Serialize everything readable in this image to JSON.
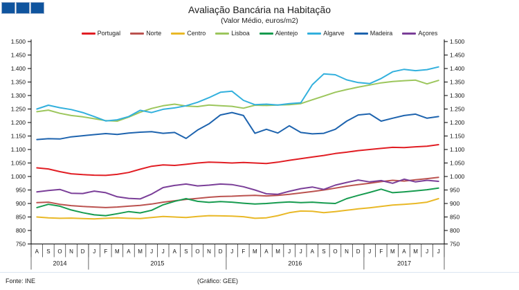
{
  "logo": {
    "square_count": 3,
    "fill": "#0f549e",
    "border": "#93aac9"
  },
  "footer": {
    "source": "Fonte: INE",
    "credit": "(Gráfico: GEE)"
  },
  "chart_data": {
    "type": "line",
    "title": "Avaliação Bancária na Habitação",
    "subtitle": "(Valor Médio, euros/m2)",
    "ylim": [
      750,
      1500
    ],
    "ytick_step": 50,
    "grid": false,
    "legend_position": "top",
    "axis_color": "#000000",
    "x_months": [
      "A",
      "S",
      "O",
      "N",
      "D",
      "J",
      "F",
      "M",
      "A",
      "M",
      "J",
      "J",
      "A",
      "S",
      "O",
      "N",
      "D",
      "J",
      "F",
      "M",
      "A",
      "M",
      "J",
      "J",
      "A",
      "S",
      "O",
      "N",
      "D",
      "J",
      "F",
      "M",
      "A",
      "M",
      "J",
      "J"
    ],
    "year_groups": [
      {
        "label": "2014",
        "count": 5
      },
      {
        "label": "2015",
        "count": 12
      },
      {
        "label": "2016",
        "count": 12
      },
      {
        "label": "2017",
        "count": 7
      }
    ],
    "series": [
      {
        "name": "Portugal",
        "color": "#e11d23",
        "values": [
          1032,
          1028,
          1018,
          1010,
          1007,
          1005,
          1004,
          1008,
          1015,
          1027,
          1038,
          1043,
          1041,
          1045,
          1050,
          1053,
          1052,
          1050,
          1052,
          1050,
          1048,
          1053,
          1060,
          1066,
          1072,
          1078,
          1085,
          1090,
          1096,
          1100,
          1104,
          1108,
          1107,
          1110,
          1112,
          1118
        ]
      },
      {
        "name": "Norte",
        "color": "#bb524f",
        "values": [
          903,
          905,
          897,
          892,
          889,
          887,
          885,
          887,
          890,
          893,
          898,
          905,
          910,
          915,
          919,
          923,
          926,
          927,
          929,
          930,
          928,
          930,
          934,
          939,
          944,
          950,
          957,
          964,
          970,
          975,
          981,
          986,
          983,
          988,
          992,
          997
        ]
      },
      {
        "name": "Centro",
        "color": "#e9b826",
        "values": [
          850,
          847,
          845,
          846,
          844,
          843,
          845,
          847,
          845,
          844,
          848,
          852,
          850,
          848,
          852,
          855,
          854,
          853,
          851,
          845,
          847,
          855,
          866,
          872,
          871,
          866,
          870,
          875,
          880,
          884,
          889,
          894,
          897,
          900,
          905,
          918
        ]
      },
      {
        "name": "Lisboa",
        "color": "#9cc65c",
        "values": [
          1240,
          1246,
          1234,
          1226,
          1221,
          1214,
          1207,
          1205,
          1220,
          1238,
          1252,
          1262,
          1268,
          1261,
          1259,
          1265,
          1262,
          1260,
          1253,
          1264,
          1263,
          1265,
          1266,
          1270,
          1284,
          1298,
          1312,
          1322,
          1331,
          1339,
          1347,
          1352,
          1355,
          1357,
          1343,
          1356
        ]
      },
      {
        "name": "Alentejo",
        "color": "#169b4f",
        "values": [
          885,
          897,
          890,
          876,
          866,
          858,
          855,
          862,
          870,
          865,
          875,
          895,
          908,
          918,
          908,
          904,
          907,
          905,
          901,
          898,
          900,
          903,
          906,
          903,
          905,
          902,
          900,
          918,
          930,
          941,
          953,
          940,
          943,
          947,
          951,
          957
        ]
      },
      {
        "name": "Algarve",
        "color": "#32b0dd",
        "values": [
          1250,
          1264,
          1255,
          1248,
          1237,
          1222,
          1206,
          1210,
          1222,
          1245,
          1237,
          1249,
          1254,
          1262,
          1275,
          1292,
          1312,
          1316,
          1282,
          1266,
          1268,
          1265,
          1270,
          1273,
          1340,
          1380,
          1377,
          1358,
          1348,
          1344,
          1363,
          1388,
          1397,
          1392,
          1396,
          1406
        ]
      },
      {
        "name": "Madeira",
        "color": "#1d63ae",
        "values": [
          1137,
          1140,
          1139,
          1147,
          1151,
          1155,
          1159,
          1156,
          1161,
          1164,
          1166,
          1160,
          1163,
          1141,
          1172,
          1195,
          1228,
          1237,
          1226,
          1160,
          1175,
          1161,
          1188,
          1163,
          1158,
          1160,
          1175,
          1205,
          1228,
          1232,
          1205,
          1216,
          1226,
          1231,
          1216,
          1222
        ]
      },
      {
        "name": "Açores",
        "color": "#7a3e98",
        "values": [
          943,
          948,
          952,
          938,
          937,
          946,
          940,
          925,
          919,
          917,
          935,
          959,
          967,
          972,
          965,
          968,
          972,
          970,
          962,
          950,
          936,
          934,
          945,
          955,
          961,
          952,
          968,
          978,
          987,
          980,
          985,
          975,
          990,
          980,
          986,
          982
        ]
      }
    ]
  }
}
